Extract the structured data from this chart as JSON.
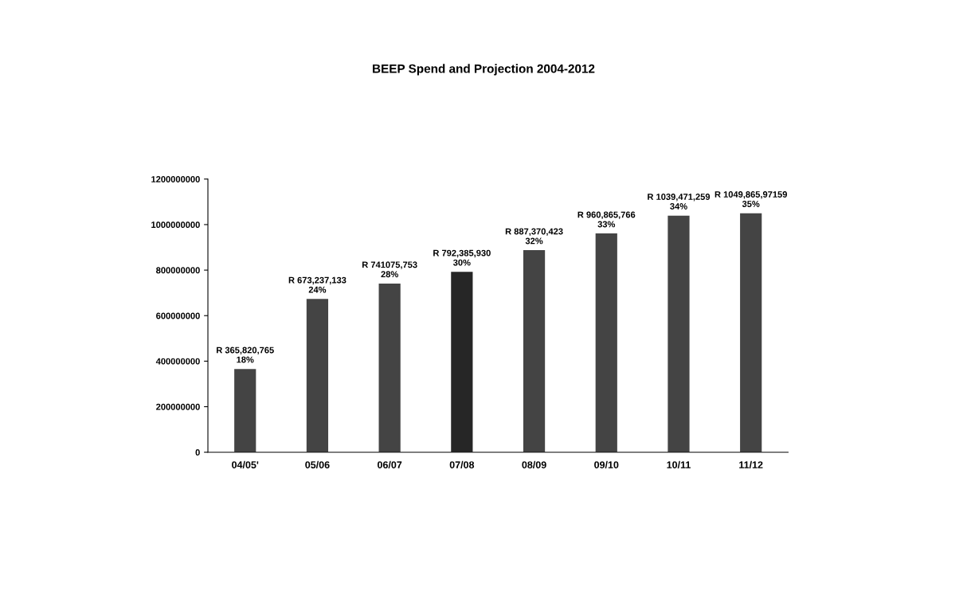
{
  "chart_data": {
    "type": "bar",
    "title": "BEEP Spend and Projection 2004-2012",
    "categories": [
      "04/05'",
      "05/06",
      "06/07",
      "07/08",
      "08/09",
      "09/10",
      "10/11",
      "11/12"
    ],
    "values": [
      365820765,
      673237133,
      741075753,
      792385930,
      887370423,
      960865766,
      1039471259,
      1049865971
    ],
    "value_labels": [
      "R 365,820,765\n18%",
      "R 673,237,133\n24%",
      "R 741075,753\n28%",
      "R 792,385,930\n30%",
      "R 887,370,423\n32%",
      "R 960,865,766\n33%",
      "R 1039,471,259\n34%",
      "R 1049,865,97159\n35%"
    ],
    "colors": [
      "#444444",
      "#444444",
      "#444444",
      "#262626",
      "#444444",
      "#444444",
      "#444444",
      "#444444"
    ],
    "ylim": [
      0,
      1200000000
    ],
    "yticks": [
      0,
      200000000,
      400000000,
      600000000,
      800000000,
      1000000000,
      1200000000
    ],
    "grid": false,
    "legend": false
  }
}
